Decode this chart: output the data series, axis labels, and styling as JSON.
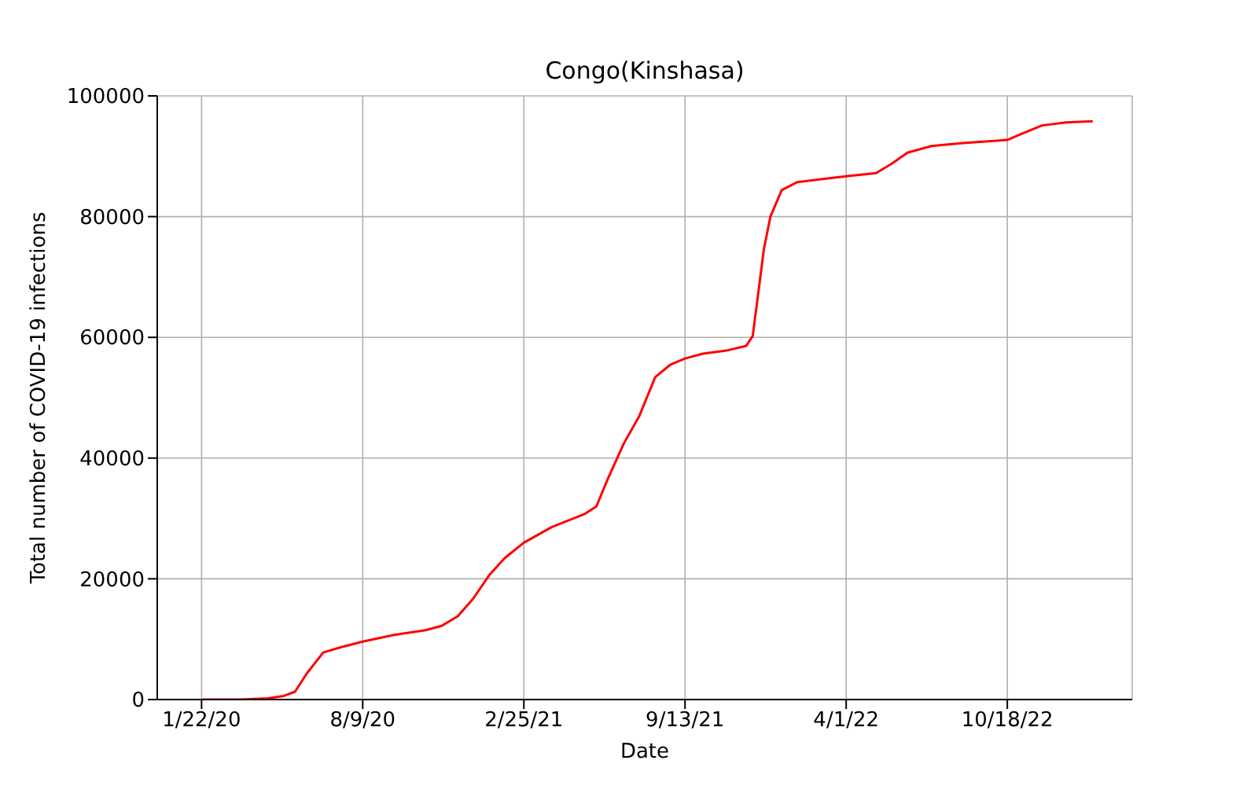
{
  "chart_data": {
    "type": "line",
    "title": "Congo(Kinshasa)",
    "xlabel": "Date",
    "ylabel": "Total number of COVID-19 infections",
    "x": [
      "2020-01-22",
      "2020-03-10",
      "2020-04-13",
      "2020-05-03",
      "2020-05-17",
      "2020-06-01",
      "2020-06-21",
      "2020-07-11",
      "2020-08-09",
      "2020-09-17",
      "2020-10-26",
      "2020-11-15",
      "2020-12-05",
      "2020-12-24",
      "2021-01-13",
      "2021-02-01",
      "2021-02-25",
      "2021-04-01",
      "2021-05-11",
      "2021-05-26",
      "2021-06-09",
      "2021-06-29",
      "2021-07-18",
      "2021-08-07",
      "2021-08-26",
      "2021-09-13",
      "2021-10-05",
      "2021-11-03",
      "2021-11-28",
      "2021-12-06",
      "2021-12-12",
      "2021-12-20",
      "2021-12-28",
      "2022-01-11",
      "2022-01-30",
      "2022-03-01",
      "2022-04-01",
      "2022-05-08",
      "2022-05-28",
      "2022-06-16",
      "2022-07-16",
      "2022-08-24",
      "2022-10-18",
      "2022-11-01",
      "2022-11-30",
      "2022-12-30",
      "2023-02-01"
    ],
    "series": [
      {
        "color": "#ff0000",
        "values": [
          0,
          0,
          200,
          600,
          1300,
          4400,
          7800,
          8600,
          9600,
          10700,
          11500,
          12200,
          13800,
          16700,
          20600,
          23400,
          26000,
          28600,
          30700,
          32000,
          36500,
          42400,
          46900,
          53400,
          55500,
          56500,
          57300,
          57800,
          58600,
          60200,
          66400,
          74700,
          80000,
          84400,
          85700,
          86200,
          86700,
          87200,
          88800,
          90600,
          91700,
          92200,
          92700,
          93500,
          95100,
          95600,
          95800
        ]
      }
    ],
    "xlim": [
      "2019-11-28",
      "2023-03-22"
    ],
    "xticks": [
      {
        "value": "2020-01-22",
        "label": "1/22/20"
      },
      {
        "value": "2020-08-09",
        "label": "8/9/20"
      },
      {
        "value": "2021-02-25",
        "label": "2/25/21"
      },
      {
        "value": "2021-09-13",
        "label": "9/13/21"
      },
      {
        "value": "2022-04-01",
        "label": "4/1/22"
      },
      {
        "value": "2022-10-18",
        "label": "10/18/22"
      }
    ],
    "ylim": [
      0,
      100000
    ],
    "yticks": [
      0,
      20000,
      40000,
      60000,
      80000,
      100000
    ],
    "grid": true,
    "marker": "none",
    "line_style": "solid"
  }
}
